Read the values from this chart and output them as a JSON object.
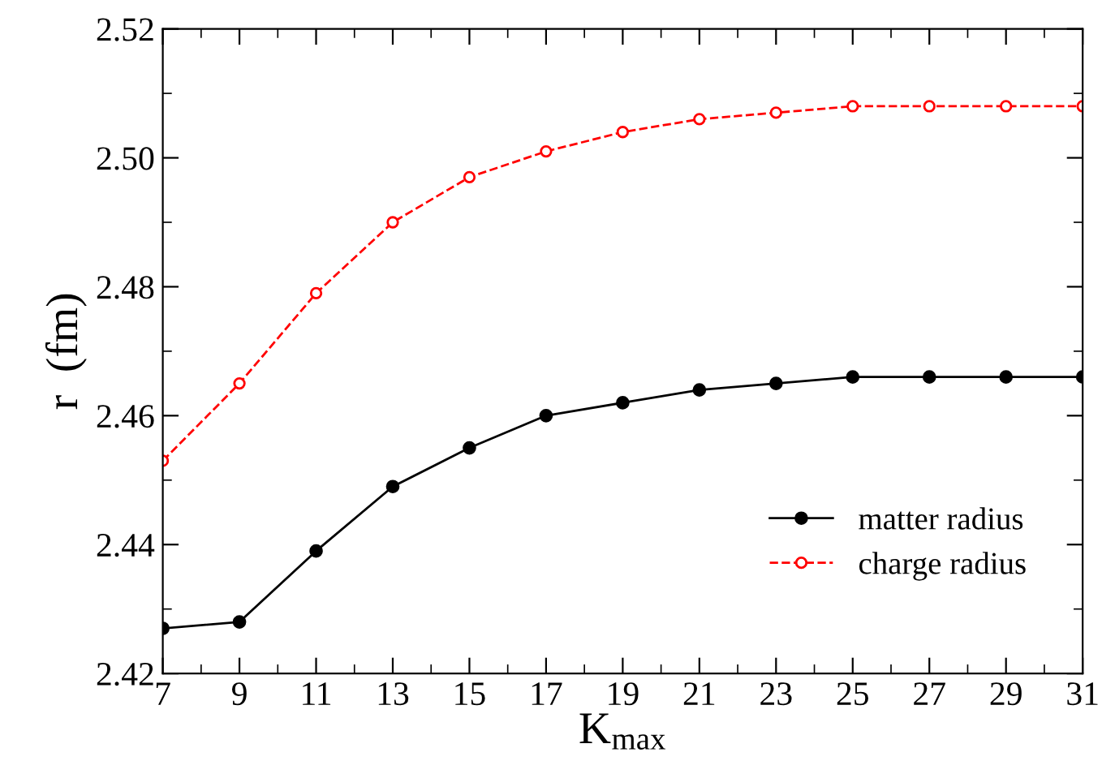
{
  "chart_data": {
    "type": "line",
    "xlabel": "K$_{max}$",
    "ylabel": "r  (fm)",
    "xlim": [
      7,
      31
    ],
    "xticks": [
      7,
      9,
      11,
      13,
      15,
      17,
      19,
      21,
      23,
      25,
      27,
      29,
      31
    ],
    "ylim": [
      2.42,
      2.52
    ],
    "yticks": [
      2.42,
      2.44,
      2.46,
      2.48,
      {
        "value": 2.5,
        "label": "2.50"
      },
      2.52
    ],
    "grid": false,
    "legend": "bottom right",
    "series": [
      {
        "name": "matter radius",
        "color": "#000000",
        "marker": "circle",
        "line_style": "solid",
        "x": [
          7,
          9,
          11,
          13,
          15,
          17,
          19,
          21,
          23,
          25,
          27,
          29,
          31
        ],
        "values": [
          2.427,
          2.428,
          2.439,
          2.449,
          2.455,
          2.46,
          2.462,
          2.464,
          2.465,
          2.466,
          2.466,
          2.466,
          2.466
        ]
      },
      {
        "name": "charge radius",
        "color": "#ff0000",
        "marker": "open circle",
        "line_style": "dashed",
        "x": [
          7,
          9,
          11,
          13,
          15,
          17,
          19,
          21,
          23,
          25,
          27,
          29,
          31
        ],
        "values": [
          2.453,
          2.465,
          2.479,
          2.49,
          2.497,
          2.501,
          2.504,
          2.506,
          2.507,
          2.508,
          2.508,
          2.508,
          2.508
        ]
      }
    ]
  }
}
